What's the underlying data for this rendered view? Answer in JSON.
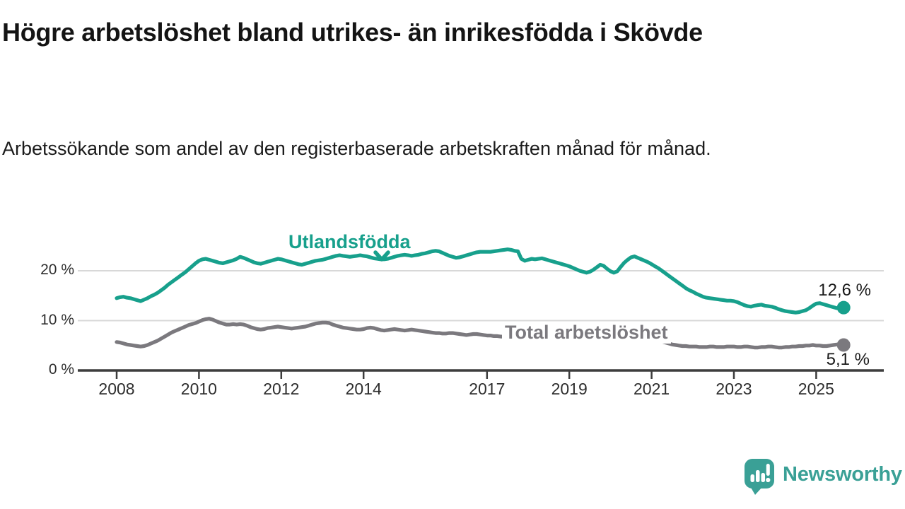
{
  "title": "Högre arbetslöshet bland utrikes- än inrikesfödda i Skövde",
  "subtitle": "Arbetssökande som andel av den registerbaserade arbetskraften månad för månad.",
  "logo": {
    "text": "Newsworthy",
    "color": "#3aa096"
  },
  "colors": {
    "foreign_born_line": "#17a08c",
    "total_line": "#7b797e",
    "axis": "#3d3d3d",
    "gridline": "#d8d8d8",
    "text": "#1c1c1c"
  },
  "chart_data": {
    "type": "line",
    "title": "Högre arbetslöshet bland utrikes- än inrikesfödda i Skövde",
    "subtitle": "Arbetssökande som andel av den registerbaserade arbetskraften månad för månad.",
    "x_unit": "month",
    "x_start": "2008-01",
    "x_end": "2025-09",
    "x_tick_years": [
      2008,
      2010,
      2012,
      2014,
      2017,
      2019,
      2021,
      2023,
      2025
    ],
    "x_tick_labels": [
      "2008",
      "2010",
      "2012",
      "2014",
      "2017",
      "2019",
      "2021",
      "2023",
      "2025"
    ],
    "y_ticks": [
      0,
      10,
      20
    ],
    "y_tick_labels": [
      "0 %",
      "10 %",
      "20 %"
    ],
    "ylim": [
      0,
      27.5
    ],
    "grid": "horizontal",
    "legend_position": "inline-labels",
    "series": [
      {
        "name": "Utlandsfödda",
        "color": "#17a08c",
        "end_value": 12.6,
        "end_label": "12,6 %",
        "values": [
          14.5,
          14.7,
          14.8,
          14.6,
          14.5,
          14.3,
          14.1,
          13.9,
          14.2,
          14.5,
          14.9,
          15.2,
          15.6,
          16.1,
          16.6,
          17.2,
          17.7,
          18.2,
          18.7,
          19.2,
          19.7,
          20.3,
          20.9,
          21.5,
          22.0,
          22.3,
          22.4,
          22.2,
          22.0,
          21.8,
          21.6,
          21.5,
          21.7,
          21.9,
          22.1,
          22.4,
          22.8,
          22.6,
          22.3,
          22.0,
          21.7,
          21.5,
          21.4,
          21.6,
          21.8,
          22.0,
          22.2,
          22.4,
          22.3,
          22.1,
          21.9,
          21.7,
          21.5,
          21.3,
          21.2,
          21.4,
          21.6,
          21.8,
          22.0,
          22.1,
          22.2,
          22.4,
          22.6,
          22.8,
          23.0,
          23.1,
          23.0,
          22.9,
          22.8,
          22.9,
          23.0,
          23.1,
          23.0,
          22.9,
          22.7,
          22.5,
          22.4,
          22.3,
          22.3,
          22.4,
          22.6,
          22.8,
          23.0,
          23.1,
          23.2,
          23.1,
          23.0,
          23.1,
          23.2,
          23.4,
          23.5,
          23.7,
          23.9,
          24.0,
          23.9,
          23.6,
          23.3,
          23.0,
          22.8,
          22.6,
          22.7,
          22.9,
          23.1,
          23.3,
          23.5,
          23.7,
          23.8,
          23.8,
          23.8,
          23.8,
          23.9,
          24.0,
          24.1,
          24.2,
          24.3,
          24.2,
          24.0,
          23.9,
          22.4,
          22.0,
          22.2,
          22.4,
          22.3,
          22.4,
          22.5,
          22.3,
          22.1,
          21.9,
          21.7,
          21.5,
          21.3,
          21.1,
          20.9,
          20.6,
          20.3,
          20.0,
          19.8,
          19.6,
          19.8,
          20.2,
          20.7,
          21.2,
          21.0,
          20.4,
          19.9,
          19.6,
          19.9,
          20.8,
          21.6,
          22.2,
          22.7,
          22.9,
          22.6,
          22.3,
          22.0,
          21.7,
          21.3,
          20.9,
          20.5,
          20.0,
          19.5,
          19.0,
          18.5,
          18.0,
          17.5,
          17.0,
          16.5,
          16.1,
          15.8,
          15.4,
          15.1,
          14.8,
          14.6,
          14.5,
          14.4,
          14.3,
          14.2,
          14.1,
          14.0,
          14.0,
          13.9,
          13.7,
          13.4,
          13.1,
          12.9,
          12.8,
          13.0,
          13.1,
          13.2,
          13.0,
          12.9,
          12.8,
          12.6,
          12.3,
          12.1,
          11.9,
          11.8,
          11.7,
          11.6,
          11.7,
          11.9,
          12.1,
          12.5,
          13.0,
          13.4,
          13.5,
          13.3,
          13.1,
          12.9,
          12.7,
          12.5,
          12.5,
          12.6
        ]
      },
      {
        "name": "Total arbetslöshet",
        "color": "#7b797e",
        "end_value": 5.1,
        "end_label": "5,1 %",
        "values": [
          5.7,
          5.6,
          5.4,
          5.2,
          5.1,
          5.0,
          4.9,
          4.8,
          4.9,
          5.1,
          5.4,
          5.7,
          6.0,
          6.4,
          6.8,
          7.2,
          7.6,
          7.9,
          8.2,
          8.5,
          8.8,
          9.1,
          9.3,
          9.5,
          9.8,
          10.1,
          10.3,
          10.4,
          10.2,
          9.9,
          9.6,
          9.4,
          9.2,
          9.2,
          9.3,
          9.2,
          9.3,
          9.2,
          9.0,
          8.7,
          8.5,
          8.3,
          8.2,
          8.3,
          8.5,
          8.6,
          8.7,
          8.8,
          8.7,
          8.6,
          8.5,
          8.4,
          8.5,
          8.6,
          8.7,
          8.8,
          9.0,
          9.2,
          9.4,
          9.5,
          9.6,
          9.6,
          9.5,
          9.2,
          9.0,
          8.8,
          8.6,
          8.5,
          8.4,
          8.3,
          8.2,
          8.2,
          8.3,
          8.5,
          8.6,
          8.5,
          8.3,
          8.1,
          8.0,
          8.1,
          8.2,
          8.3,
          8.2,
          8.1,
          8.0,
          8.1,
          8.2,
          8.1,
          8.0,
          7.9,
          7.8,
          7.7,
          7.6,
          7.5,
          7.5,
          7.4,
          7.4,
          7.5,
          7.5,
          7.4,
          7.3,
          7.2,
          7.1,
          7.2,
          7.3,
          7.3,
          7.2,
          7.1,
          7.0,
          7.0,
          6.9,
          6.9,
          6.8,
          6.8,
          6.9,
          7.0,
          7.0,
          6.9,
          6.8,
          6.8,
          6.7,
          6.6,
          6.5,
          6.5,
          6.6,
          6.5,
          6.4,
          6.3,
          6.3,
          6.4,
          6.3,
          6.2,
          6.2,
          6.3,
          6.3,
          6.2,
          6.1,
          6.1,
          6.2,
          6.3,
          6.2,
          6.1,
          6.0,
          6.1,
          6.2,
          6.4,
          6.6,
          7.0,
          7.3,
          7.5,
          7.5,
          7.4,
          7.2,
          7.0,
          6.8,
          6.6,
          6.4,
          6.2,
          6.0,
          5.8,
          5.6,
          5.4,
          5.2,
          5.1,
          5.0,
          4.9,
          4.9,
          4.8,
          4.8,
          4.8,
          4.7,
          4.7,
          4.7,
          4.8,
          4.8,
          4.7,
          4.7,
          4.7,
          4.8,
          4.8,
          4.8,
          4.7,
          4.7,
          4.8,
          4.8,
          4.7,
          4.6,
          4.6,
          4.7,
          4.7,
          4.8,
          4.8,
          4.7,
          4.6,
          4.6,
          4.7,
          4.7,
          4.8,
          4.8,
          4.9,
          4.9,
          5.0,
          5.0,
          5.1,
          5.0,
          5.0,
          4.9,
          4.9,
          5.0,
          5.1,
          5.2,
          5.2,
          5.1
        ]
      }
    ]
  }
}
